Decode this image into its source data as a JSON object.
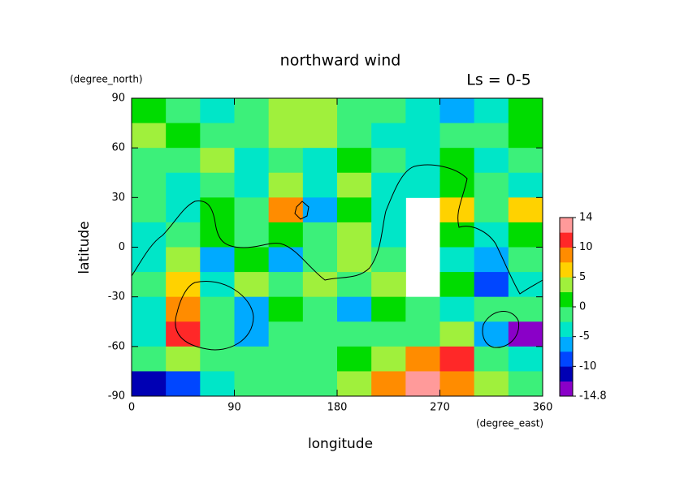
{
  "chart_data": {
    "type": "contour",
    "title": "northward wind",
    "subtitle": "Ls = 0-5",
    "xlabel": "longitude",
    "ylabel": "latitude",
    "xunit": "(degree_east)",
    "yunit": "(degree_north)",
    "xlim": [
      0,
      360
    ],
    "ylim": [
      -90,
      90
    ],
    "xticks": [
      0,
      90,
      180,
      270,
      360
    ],
    "yticks": [
      90,
      60,
      30,
      0,
      -30,
      -60,
      -90
    ],
    "xbins": [
      0,
      30,
      60,
      90,
      120,
      150,
      180,
      210,
      240,
      270,
      300,
      330,
      360
    ],
    "ybins": [
      90,
      75,
      60,
      45,
      30,
      15,
      0,
      -15,
      -30,
      -45,
      -60,
      -75,
      -90
    ],
    "z": [
      [
        2,
        0,
        -3,
        0,
        3,
        5,
        0,
        -2,
        -4,
        -6,
        -3,
        2
      ],
      [
        3,
        1,
        -2,
        0,
        5,
        3,
        -2,
        -3,
        -3,
        -2,
        0,
        2
      ],
      [
        -2,
        -2,
        3,
        -3,
        0,
        -3,
        2,
        0,
        -3,
        2,
        -3,
        0
      ],
      [
        0,
        -3,
        0,
        -3,
        4,
        -3,
        3,
        -3,
        -3,
        2,
        0,
        -3
      ],
      [
        -2,
        -4,
        2,
        -2,
        8,
        -7,
        2,
        -4,
        null,
        6,
        -2,
        6
      ],
      [
        -3,
        0,
        2,
        0,
        2,
        0,
        3,
        -3,
        null,
        2,
        -3,
        2
      ],
      [
        -4,
        5,
        -5,
        2,
        -5,
        -2,
        5,
        -2,
        null,
        -3,
        -6,
        -2
      ],
      [
        0,
        6,
        -3,
        3,
        -2,
        4,
        0,
        3,
        null,
        2,
        -8,
        -3
      ],
      [
        -3,
        9,
        -2,
        -5,
        2,
        -2,
        -6,
        2,
        -2,
        -3,
        -2,
        -2
      ],
      [
        -3,
        12,
        0,
        -5,
        0,
        -2,
        0,
        0,
        -2,
        3,
        -5,
        -14
      ],
      [
        -2,
        5,
        0,
        -2,
        0,
        0,
        2,
        5,
        8,
        12,
        0,
        -3
      ],
      [
        -10,
        -8,
        -3,
        0,
        -2,
        0,
        3,
        8,
        13,
        10,
        3,
        0
      ]
    ],
    "levels": [
      -14.8,
      -12.5,
      -10,
      -7.5,
      -5,
      -2.5,
      0,
      2.5,
      5,
      7.5,
      10,
      12,
      14
    ],
    "colors": [
      "#8a00c8",
      "#0000b4",
      "#0046ff",
      "#00aaff",
      "#00e6c8",
      "#3cf07a",
      "#00dc00",
      "#a0f03c",
      "#ffd200",
      "#ff8c00",
      "#ff2828",
      "#ff9a9a"
    ],
    "colorbar_ticks": [
      14,
      10,
      5,
      0,
      -5,
      -10,
      -14.8
    ]
  }
}
